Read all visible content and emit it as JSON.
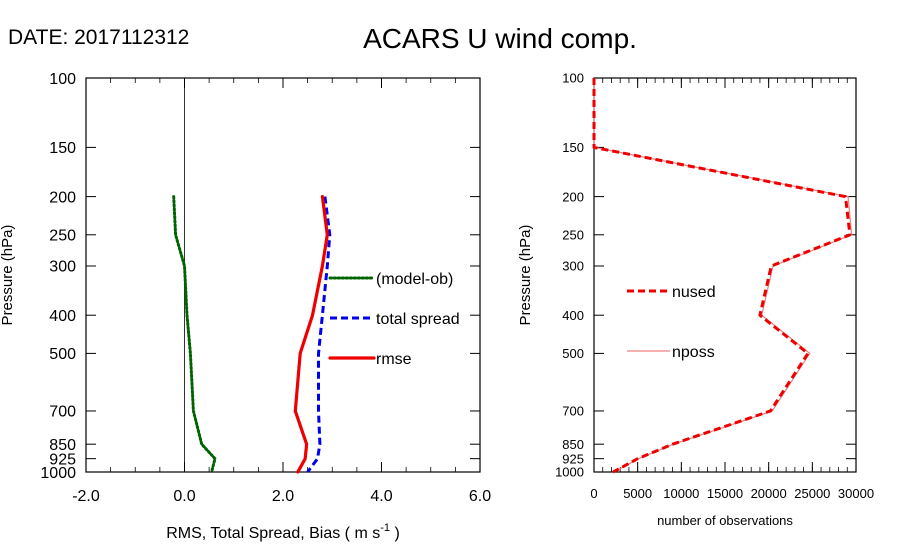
{
  "header": {
    "date_label": "DATE: 2017112312",
    "title": "ACARS U wind comp."
  },
  "chart_data": [
    {
      "type": "line",
      "xlabel": "RMS, Total Spread, Bias ( m s",
      "xlabel_sup": "-1",
      "xlabel_end": " )",
      "ylabel": "Pressure (hPa)",
      "xlim": [
        -2.0,
        6.0
      ],
      "ylim": [
        1000,
        100
      ],
      "y_scale": "log",
      "x_ticks": [
        "-2.0",
        "0.0",
        "2.0",
        "4.0",
        "6.0"
      ],
      "x_tick_values": [
        -2,
        0,
        2,
        4,
        6
      ],
      "y_ticks": [
        "100",
        "150",
        "200",
        "250",
        "300",
        "400",
        "500",
        "700",
        "850",
        "925",
        "1000"
      ],
      "y_tick_values": [
        100,
        150,
        200,
        250,
        300,
        400,
        500,
        700,
        850,
        925,
        1000
      ],
      "zero_line": 0,
      "legend_position": "right-middle",
      "series": [
        {
          "name": "(model-ob)",
          "style": "dotted",
          "color": "#006400",
          "y": [
            200,
            250,
            300,
            400,
            500,
            700,
            850,
            925,
            1000
          ],
          "x": [
            -0.22,
            -0.18,
            0.0,
            0.05,
            0.12,
            0.18,
            0.35,
            0.62,
            0.55
          ]
        },
        {
          "name": "total spread",
          "style": "dashed",
          "color": "#0000ee",
          "y": [
            200,
            250,
            300,
            400,
            500,
            700,
            850,
            925,
            1000
          ],
          "x": [
            2.85,
            2.95,
            2.9,
            2.8,
            2.72,
            2.72,
            2.75,
            2.7,
            2.5
          ]
        },
        {
          "name": "rmse",
          "style": "solid",
          "color": "#ee0000",
          "y": [
            200,
            250,
            300,
            400,
            500,
            700,
            850,
            925,
            1000
          ],
          "x": [
            2.8,
            2.9,
            2.8,
            2.6,
            2.35,
            2.25,
            2.48,
            2.45,
            2.3
          ]
        }
      ]
    },
    {
      "type": "line",
      "xlabel": "number of observations",
      "ylabel": "Pressure (hPa)",
      "xlim": [
        0,
        30000
      ],
      "ylim": [
        1000,
        100
      ],
      "y_scale": "log",
      "x_ticks": [
        "0",
        "5000",
        "10000",
        "15000",
        "20000",
        "25000",
        "30000"
      ],
      "x_tick_values": [
        0,
        5000,
        10000,
        15000,
        20000,
        25000,
        30000
      ],
      "y_ticks": [
        "100",
        "150",
        "200",
        "250",
        "300",
        "400",
        "500",
        "700",
        "850",
        "925",
        "1000"
      ],
      "y_tick_values": [
        100,
        150,
        200,
        250,
        300,
        400,
        500,
        700,
        850,
        925,
        1000
      ],
      "legend_position": "left-middle",
      "series": [
        {
          "name": "nused",
          "style": "dashed",
          "color": "#ee0000",
          "y": [
            100,
            150,
            200,
            250,
            300,
            400,
            500,
            700,
            850,
            925,
            1000
          ],
          "x": [
            0,
            0,
            28800,
            29300,
            20300,
            19000,
            24500,
            20200,
            9000,
            5000,
            2200
          ]
        },
        {
          "name": "nposs",
          "style": "solid-thin",
          "color": "#f08080",
          "y": [
            100,
            150,
            200,
            250,
            300,
            400,
            500,
            700,
            850,
            925,
            1000
          ],
          "x": [
            0,
            0,
            29100,
            29500,
            20500,
            19200,
            24700,
            20400,
            9100,
            5100,
            2300
          ]
        }
      ]
    }
  ]
}
